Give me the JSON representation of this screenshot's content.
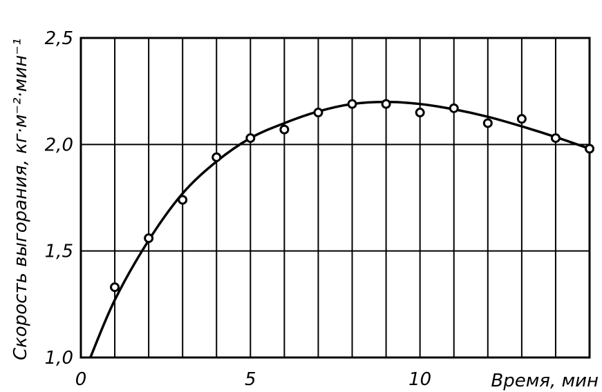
{
  "chart_data": {
    "type": "scatter",
    "title": "",
    "xlabel": "Время, мин",
    "ylabel": "Скорость выгорания, кг·м⁻²·мин⁻¹",
    "xlim": [
      0,
      15
    ],
    "ylim": [
      1.0,
      2.5
    ],
    "x_ticks": [
      {
        "value": 0,
        "label": "0"
      },
      {
        "value": 5,
        "label": "5"
      },
      {
        "value": 10,
        "label": "10"
      }
    ],
    "y_ticks": [
      {
        "value": 1.0,
        "label": "1,0"
      },
      {
        "value": 1.5,
        "label": "1,5"
      },
      {
        "value": 2.0,
        "label": "2,0"
      },
      {
        "value": 2.5,
        "label": "2,5"
      }
    ],
    "grid": {
      "vertical_step": 1,
      "horizontal_step": 0.5
    },
    "series": [
      {
        "marker": "open-circle",
        "points": [
          {
            "x": 1,
            "y": 1.33
          },
          {
            "x": 2,
            "y": 1.56
          },
          {
            "x": 3,
            "y": 1.74
          },
          {
            "x": 4,
            "y": 1.94
          },
          {
            "x": 5,
            "y": 2.03
          },
          {
            "x": 6,
            "y": 2.07
          },
          {
            "x": 7,
            "y": 2.15
          },
          {
            "x": 8,
            "y": 2.19
          },
          {
            "x": 9,
            "y": 2.19
          },
          {
            "x": 10,
            "y": 2.15
          },
          {
            "x": 11,
            "y": 2.17
          },
          {
            "x": 12,
            "y": 2.1
          },
          {
            "x": 13,
            "y": 2.12
          },
          {
            "x": 14,
            "y": 2.03
          },
          {
            "x": 15,
            "y": 1.98
          }
        ]
      },
      {
        "marker": "line",
        "points": [
          {
            "x": 0.28,
            "y": 1.0
          },
          {
            "x": 1,
            "y": 1.27
          },
          {
            "x": 2,
            "y": 1.55
          },
          {
            "x": 3,
            "y": 1.77
          },
          {
            "x": 4,
            "y": 1.92
          },
          {
            "x": 5,
            "y": 2.03
          },
          {
            "x": 6,
            "y": 2.1
          },
          {
            "x": 7,
            "y": 2.155
          },
          {
            "x": 8,
            "y": 2.19
          },
          {
            "x": 9,
            "y": 2.2
          },
          {
            "x": 10,
            "y": 2.19
          },
          {
            "x": 11,
            "y": 2.165
          },
          {
            "x": 12,
            "y": 2.13
          },
          {
            "x": 13,
            "y": 2.085
          },
          {
            "x": 14,
            "y": 2.035
          },
          {
            "x": 15,
            "y": 1.98
          }
        ]
      }
    ]
  }
}
